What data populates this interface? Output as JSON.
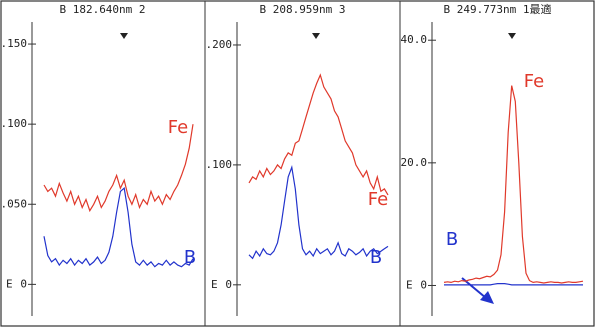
{
  "chart_data": [
    {
      "type": "line",
      "title": "B  182.640nm 2",
      "axis_note": "E",
      "ylim": [
        -0.016,
        0.17
      ],
      "yticks": [
        {
          "value": 0,
          "label": "0"
        },
        {
          "value": 0.05,
          "label": ".050"
        },
        {
          "value": 0.1,
          "label": ".100"
        },
        {
          "value": 0.15,
          "label": ".150"
        }
      ],
      "series": [
        {
          "name": "Fe",
          "color": "#e0392b",
          "values": [
            0.062,
            0.058,
            0.06,
            0.055,
            0.063,
            0.057,
            0.052,
            0.058,
            0.05,
            0.055,
            0.048,
            0.053,
            0.046,
            0.05,
            0.055,
            0.048,
            0.052,
            0.058,
            0.062,
            0.068,
            0.06,
            0.065,
            0.055,
            0.05,
            0.056,
            0.048,
            0.053,
            0.05,
            0.058,
            0.052,
            0.055,
            0.05,
            0.056,
            0.053,
            0.058,
            0.062,
            0.068,
            0.075,
            0.085,
            0.1
          ]
        },
        {
          "name": "B",
          "color": "#2233cc",
          "values": [
            0.03,
            0.018,
            0.014,
            0.016,
            0.012,
            0.015,
            0.013,
            0.016,
            0.012,
            0.015,
            0.013,
            0.016,
            0.012,
            0.014,
            0.017,
            0.013,
            0.015,
            0.02,
            0.03,
            0.045,
            0.058,
            0.06,
            0.045,
            0.025,
            0.014,
            0.012,
            0.015,
            0.012,
            0.014,
            0.011,
            0.013,
            0.012,
            0.015,
            0.012,
            0.014,
            0.012,
            0.011,
            0.013,
            0.012,
            0.016
          ]
        }
      ]
    },
    {
      "type": "line",
      "title": "B  208.959nm 3",
      "axis_note": "E",
      "ylim": [
        -0.021,
        0.2275
      ],
      "yticks": [
        {
          "value": 0,
          "label": "0"
        },
        {
          "value": 0.1,
          "label": ".100"
        },
        {
          "value": 0.2,
          "label": ".200"
        }
      ],
      "series": [
        {
          "name": "Fe",
          "color": "#e0392b",
          "values": [
            0.085,
            0.09,
            0.088,
            0.095,
            0.09,
            0.097,
            0.092,
            0.095,
            0.1,
            0.097,
            0.105,
            0.11,
            0.108,
            0.118,
            0.12,
            0.13,
            0.14,
            0.15,
            0.16,
            0.168,
            0.175,
            0.165,
            0.16,
            0.155,
            0.145,
            0.14,
            0.13,
            0.12,
            0.115,
            0.11,
            0.1,
            0.095,
            0.09,
            0.095,
            0.085,
            0.08,
            0.09,
            0.078,
            0.08,
            0.075
          ]
        },
        {
          "name": "B",
          "color": "#2233cc",
          "values": [
            0.025,
            0.022,
            0.028,
            0.024,
            0.03,
            0.026,
            0.025,
            0.028,
            0.035,
            0.05,
            0.07,
            0.09,
            0.098,
            0.08,
            0.05,
            0.03,
            0.025,
            0.028,
            0.024,
            0.03,
            0.026,
            0.028,
            0.03,
            0.025,
            0.028,
            0.035,
            0.026,
            0.024,
            0.03,
            0.028,
            0.025,
            0.027,
            0.03,
            0.024,
            0.028,
            0.03,
            0.026,
            0.028,
            0.03,
            0.032
          ]
        }
      ]
    },
    {
      "type": "line",
      "title": "B  249.773nm 1最適",
      "axis_note": "E",
      "ylim": [
        -4,
        44.6
      ],
      "yticks": [
        {
          "value": 0,
          "label": "0"
        },
        {
          "value": 20,
          "label": "20.0"
        },
        {
          "value": 40,
          "label": "40.0"
        }
      ],
      "series": [
        {
          "name": "Fe",
          "color": "#e0392b",
          "values": [
            0.5,
            0.6,
            0.5,
            0.7,
            0.6,
            0.8,
            0.7,
            0.9,
            1,
            1.2,
            1.1,
            1.3,
            1.5,
            1.4,
            1.8,
            2.5,
            5,
            12,
            25,
            32.6,
            30,
            20,
            8,
            2,
            0.8,
            0.5,
            0.6,
            0.5,
            0.4,
            0.5,
            0.6,
            0.5,
            0.5,
            0.4,
            0.5,
            0.6,
            0.5,
            0.5,
            0.6,
            0.7
          ]
        },
        {
          "name": "B",
          "color": "#2233cc",
          "values": [
            0.1,
            0.1,
            0.1,
            0.1,
            0.1,
            0.1,
            0.1,
            0.1,
            0.1,
            0.1,
            0.1,
            0.1,
            0.1,
            0.1,
            0.2,
            0.3,
            0.3,
            0.3,
            0.2,
            0.1,
            0.1,
            0.1,
            0.1,
            0.1,
            0.1,
            0.1,
            0.1,
            0.1,
            0.1,
            0.1,
            0.1,
            0.1,
            0.1,
            0.1,
            0.1,
            0.1,
            0.1,
            0.1,
            0.1,
            0.1
          ]
        }
      ]
    }
  ]
}
